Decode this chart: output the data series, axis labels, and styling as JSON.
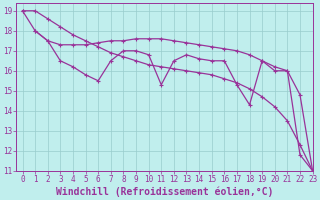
{
  "line1_x": [
    0,
    1,
    2,
    3,
    4,
    5,
    6,
    7,
    8,
    9,
    10,
    11,
    12,
    13,
    14,
    15,
    16,
    17,
    18,
    19,
    20,
    21,
    22,
    23
  ],
  "line1_y": [
    19.0,
    19.0,
    18.6,
    18.2,
    17.8,
    17.5,
    17.2,
    16.9,
    16.7,
    16.5,
    16.3,
    16.2,
    16.1,
    16.0,
    15.9,
    15.8,
    15.6,
    15.4,
    15.1,
    14.7,
    14.2,
    13.5,
    12.3,
    11.0
  ],
  "line2_x": [
    1,
    2,
    3,
    4,
    5,
    6,
    7,
    8,
    9,
    10,
    11,
    12,
    13,
    14,
    15,
    16,
    17,
    18,
    19,
    20,
    21,
    22,
    23
  ],
  "line2_y": [
    18.0,
    17.5,
    17.3,
    17.3,
    17.3,
    17.4,
    17.5,
    17.5,
    17.6,
    17.6,
    17.6,
    17.5,
    17.4,
    17.3,
    17.2,
    17.1,
    17.0,
    16.8,
    16.5,
    16.2,
    16.0,
    11.8,
    11.0
  ],
  "line3_x": [
    0,
    1,
    2,
    3,
    4,
    5,
    6,
    7,
    8,
    9,
    10,
    11,
    12,
    13,
    14,
    15,
    16,
    17,
    18,
    19,
    20,
    21,
    22,
    23
  ],
  "line3_y": [
    19.0,
    18.0,
    17.5,
    16.5,
    16.2,
    15.8,
    15.5,
    16.5,
    17.0,
    17.0,
    16.8,
    15.3,
    16.5,
    16.8,
    16.6,
    16.5,
    16.5,
    15.3,
    14.3,
    16.5,
    16.0,
    16.0,
    14.8,
    11.0
  ],
  "background_color": "#c0eeed",
  "grid_color": "#99cccc",
  "line_color": "#993399",
  "xlim": [
    -0.5,
    23
  ],
  "ylim": [
    11,
    19.4
  ],
  "yticks": [
    11,
    12,
    13,
    14,
    15,
    16,
    17,
    18,
    19
  ],
  "xticks": [
    0,
    1,
    2,
    3,
    4,
    5,
    6,
    7,
    8,
    9,
    10,
    11,
    12,
    13,
    14,
    15,
    16,
    17,
    18,
    19,
    20,
    21,
    22,
    23
  ],
  "xlabel": "Windchill (Refroidissement éolien,°C)",
  "xlabel_fontsize": 7,
  "tick_fontsize": 5.5,
  "linewidth": 0.9,
  "markersize": 2.5
}
